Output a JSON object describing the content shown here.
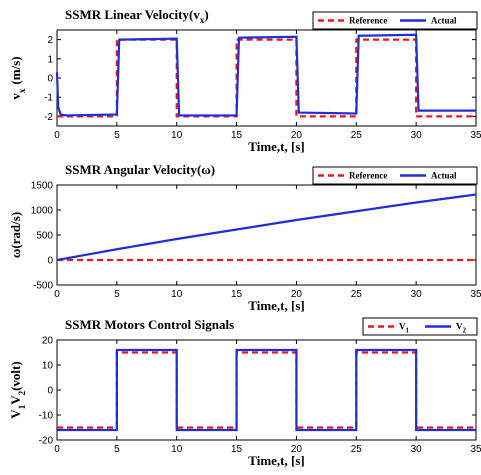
{
  "chart_data": [
    {
      "type": "line",
      "title": "SSMR Linear Velocity(v",
      "title_sub": "x",
      "title_end": ")",
      "xlabel": "Time,t, [s]",
      "ylabel": "v",
      "ylabel_sub": "x",
      "ylabel_end": "(m/s)",
      "xlim": [
        0,
        35
      ],
      "ylim": [
        -2.5,
        2.5
      ],
      "xticks": [
        "0",
        "5",
        "10",
        "15",
        "20",
        "25",
        "30",
        "35"
      ],
      "yticks": [
        "-2",
        "-1",
        "0",
        "1",
        "2"
      ],
      "ytick_values": [
        -2,
        -1,
        0,
        1,
        2
      ],
      "legend_position": "top-right",
      "series": [
        {
          "name": "Reference",
          "color": "#e8191f",
          "dash": "dashed",
          "x": [
            0,
            5,
            5,
            10,
            10,
            15,
            15,
            20,
            20,
            25,
            25,
            30,
            30,
            35
          ],
          "y": [
            -2,
            -2,
            2,
            2,
            -2,
            -2,
            2,
            2,
            -2,
            -2,
            2,
            2,
            -2,
            -2
          ]
        },
        {
          "name": "Actual",
          "color": "#1f2fd6",
          "dash": "solid",
          "x": [
            0,
            0.1,
            0.3,
            0.8,
            5,
            5.2,
            10,
            10.2,
            15,
            15.2,
            20,
            20.2,
            25,
            25.2,
            30,
            30.2,
            35
          ],
          "y": [
            0.3,
            -1.5,
            -1.9,
            -1.95,
            -1.9,
            2.0,
            2.05,
            -1.95,
            -1.95,
            2.1,
            2.15,
            -1.8,
            -1.85,
            2.2,
            2.25,
            -1.7,
            -1.7
          ]
        }
      ]
    },
    {
      "type": "line",
      "title": "SSMR Angular Velocity(ω)",
      "xlabel": "Time,t, [s]",
      "ylabel": "ω(rad/s)",
      "xlim": [
        0,
        35
      ],
      "ylim": [
        -500,
        1500
      ],
      "xticks": [
        "0",
        "5",
        "10",
        "15",
        "20",
        "25",
        "30",
        "35"
      ],
      "yticks": [
        "-500",
        "0",
        "500",
        "1000",
        "1500"
      ],
      "ytick_values": [
        -500,
        0,
        500,
        1000,
        1500
      ],
      "legend_position": "top-right",
      "series": [
        {
          "name": "Reference",
          "color": "#e8191f",
          "dash": "dashed",
          "x": [
            0,
            35
          ],
          "y": [
            0,
            0
          ]
        },
        {
          "name": "Actual",
          "color": "#1f2fd6",
          "dash": "solid",
          "x": [
            0,
            5,
            10,
            15,
            20,
            25,
            30,
            35
          ],
          "y": [
            0,
            215,
            420,
            610,
            800,
            975,
            1150,
            1310
          ]
        }
      ]
    },
    {
      "type": "line",
      "title": "SSMR Motors Control Signals",
      "xlabel": "Time,t, [s]",
      "ylabel": "V",
      "ylabel_parts": [
        "1",
        "V",
        "2",
        "(volt)"
      ],
      "xlim": [
        0,
        35
      ],
      "ylim": [
        -20,
        20
      ],
      "xticks": [
        "0",
        "5",
        "10",
        "15",
        "20",
        "25",
        "30",
        "35"
      ],
      "yticks": [
        "-20",
        "-10",
        "0",
        "10",
        "20"
      ],
      "ytick_values": [
        -20,
        -10,
        0,
        10,
        20
      ],
      "legend_position": "top-right",
      "series": [
        {
          "name": "V",
          "name_sub": "1",
          "color": "#e8191f",
          "dash": "dashed",
          "x": [
            0,
            5,
            5,
            10,
            10,
            15,
            15,
            20,
            20,
            25,
            25,
            30,
            30,
            35
          ],
          "y": [
            -15,
            -15,
            15,
            15,
            -15,
            -15,
            15,
            15,
            -15,
            -15,
            15,
            15,
            -15,
            -15
          ]
        },
        {
          "name": "V",
          "name_sub": "2",
          "color": "#1f2fd6",
          "dash": "solid",
          "x": [
            0,
            5,
            5,
            10,
            10,
            15,
            15,
            20,
            20,
            25,
            25,
            30,
            30,
            35
          ],
          "y": [
            -16,
            -16,
            16,
            16,
            -16,
            -16,
            16,
            16,
            -16,
            -16,
            16,
            16,
            -16,
            -16
          ]
        }
      ]
    }
  ]
}
